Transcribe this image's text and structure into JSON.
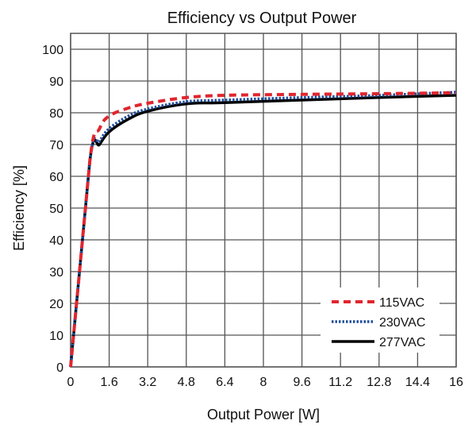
{
  "chart_data": {
    "type": "line",
    "title": "Efficiency vs Output Power",
    "xlabel": "Output Power [W]",
    "ylabel": "Efficiency [%]",
    "xlim": [
      0,
      16
    ],
    "ylim": [
      0,
      100
    ],
    "xticks": [
      "0",
      "1.6",
      "3.2",
      "4.8",
      "6.4",
      "8",
      "9.6",
      "11.2",
      "12.8",
      "14.4",
      "16"
    ],
    "yticks": [
      "0",
      "10",
      "20",
      "30",
      "40",
      "50",
      "60",
      "70",
      "80",
      "90",
      "100"
    ],
    "grid": true,
    "legend_position": "bottom-right",
    "series": [
      {
        "name": "115VAC",
        "color": "#e0262e",
        "style": "dashed",
        "x": [
          0,
          0.8,
          1.2,
          1.6,
          2.4,
          3.2,
          4.8,
          6.4,
          9.6,
          12.8,
          16
        ],
        "y": [
          0,
          65,
          75,
          79,
          81.5,
          83,
          84.8,
          85.5,
          85.8,
          86,
          86.3
        ]
      },
      {
        "name": "230VAC",
        "color": "#1f4e9c",
        "style": "dotted",
        "x": [
          0,
          0.8,
          1.2,
          1.6,
          2.4,
          3.2,
          4.8,
          6.4,
          9.6,
          12.8,
          16
        ],
        "y": [
          0,
          65,
          71,
          75,
          79,
          81.2,
          83.5,
          84,
          84.8,
          85.5,
          86.5
        ]
      },
      {
        "name": "277VAC",
        "color": "#000000",
        "style": "solid",
        "x": [
          0,
          0.8,
          1.2,
          1.6,
          2.4,
          3.2,
          4.8,
          6.4,
          9.6,
          12.8,
          16
        ],
        "y": [
          0,
          65,
          70,
          74,
          78,
          80.5,
          82.8,
          83.2,
          84,
          84.8,
          85.5
        ]
      }
    ]
  }
}
